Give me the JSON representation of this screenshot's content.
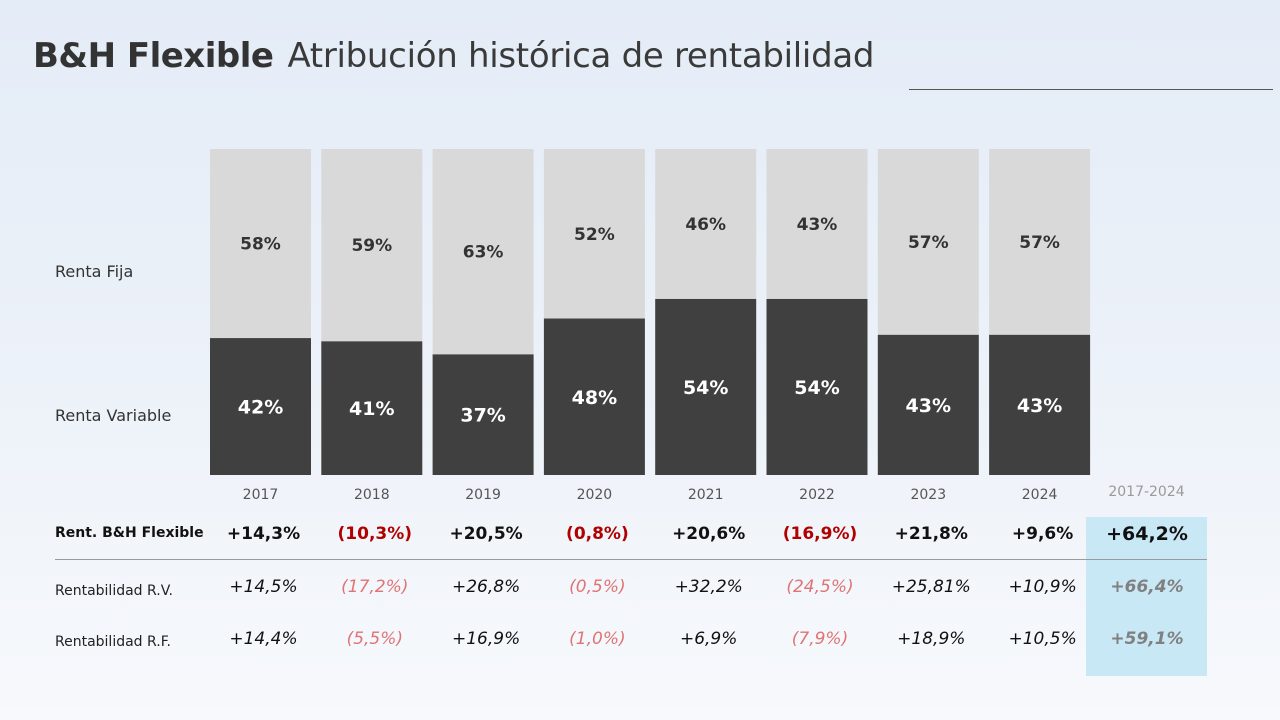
{
  "header": {
    "title_bold": "B&H Flexible",
    "title_light": "Atribución histórica de rentabilidad"
  },
  "labels": {
    "renta_fija": "Renta Fija",
    "renta_variable": "Renta Variable",
    "rent_main": "Rent. B&H Flexible",
    "rent_rv": "Rentabilidad R.V.",
    "rent_rf": "Rentabilidad R.F."
  },
  "chart_data": {
    "type": "bar",
    "stacked": true,
    "categories": [
      "2017",
      "2018",
      "2019",
      "2020",
      "2021",
      "2022",
      "2023",
      "2024"
    ],
    "series": [
      {
        "name": "Renta Variable",
        "values": [
          42,
          41,
          37,
          48,
          54,
          54,
          43,
          43
        ],
        "labels": [
          "42%",
          "41%",
          "37%",
          "48%",
          "54%",
          "54%",
          "43%",
          "43%"
        ],
        "color": "#404040"
      },
      {
        "name": "Renta Fija",
        "values": [
          58,
          59,
          63,
          52,
          46,
          43,
          57,
          57
        ],
        "labels": [
          "58%",
          "59%",
          "63%",
          "52%",
          "46%",
          "43%",
          "57%",
          "57%"
        ],
        "color": "#d9d9d9"
      }
    ],
    "ylim": [
      0,
      100
    ]
  },
  "table": {
    "period_label": "2017-2024",
    "rent_main": [
      "+14,3%",
      "(10,3%)",
      "+20,5%",
      "(0,8%)",
      "+20,6%",
      "(16,9%)",
      "+21,8%",
      "+9,6%"
    ],
    "rent_main_total": "+64,2%",
    "rent_rv": [
      "+14,5%",
      "(17,2%)",
      "+26,8%",
      "(0,5%)",
      "+32,2%",
      "(24,5%)",
      "+25,81%",
      "+10,9%"
    ],
    "rent_rv_total": "+66,4%",
    "rent_rf": [
      "+14,4%",
      "(5,5%)",
      "+16,9%",
      "(1,0%)",
      "+6,9%",
      "(7,9%)",
      "+18,9%",
      "+10,5%"
    ],
    "rent_rf_total": "+59,1%",
    "colors": {
      "positive": "#111111",
      "negative_main": "#b00000",
      "negative_sub": "#e07474",
      "total_box": "#c9e8f6"
    }
  }
}
